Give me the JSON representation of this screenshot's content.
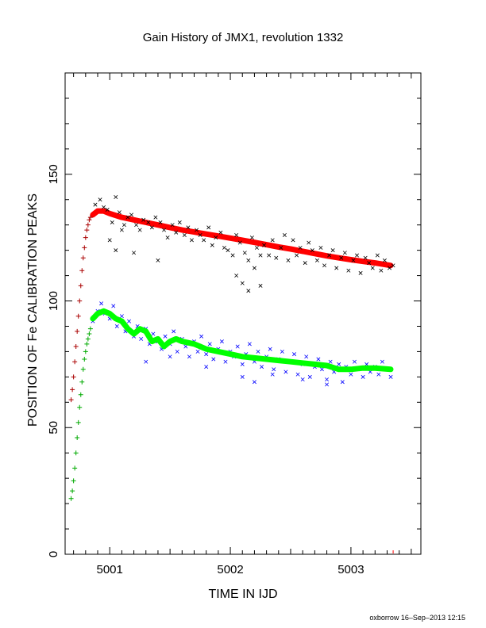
{
  "chart_data": {
    "type": "scatter",
    "title": "Gain History of JMX1, revolution 1332",
    "xlabel": "TIME IN IJD",
    "ylabel": "POSITION OF Fe CALIBRATION PEAKS",
    "footer": "oxborrow 16–Sep–2013 12:15",
    "xlim": [
      5000.63,
      5003.58
    ],
    "ylim": [
      0,
      190
    ],
    "x_ticks": [
      5001,
      5002,
      5003
    ],
    "x_tick_labels": [
      "5001",
      "5002",
      "5003"
    ],
    "y_ticks": [
      0,
      50,
      100,
      150
    ],
    "y_tick_labels": [
      "0",
      "50",
      "100",
      "150"
    ],
    "grid": false,
    "series": [
      {
        "role": "upper-peak-fit",
        "color": "#ff0000",
        "marker": "thick-line",
        "x": [
          5000.86,
          5000.9,
          5000.95,
          5001.0,
          5001.1,
          5001.2,
          5001.3,
          5001.4,
          5001.5,
          5001.6,
          5001.7,
          5001.8,
          5001.9,
          5002.0,
          5002.1,
          5002.2,
          5002.3,
          5002.4,
          5002.5,
          5002.6,
          5002.7,
          5002.8,
          5002.9,
          5003.0,
          5003.1,
          5003.2,
          5003.33
        ],
        "y": [
          134,
          135.5,
          135.5,
          134.5,
          133,
          132,
          131,
          130,
          129,
          128,
          127.2,
          126.4,
          125.6,
          124.8,
          124,
          123.1,
          122.2,
          121.3,
          120.5,
          119.6,
          118.7,
          117.8,
          117,
          116.3,
          115.6,
          115,
          114
        ]
      },
      {
        "role": "upper-peak-rise",
        "color": "#aa0000",
        "marker": "plus",
        "x": [
          5000.68,
          5000.69,
          5000.7,
          5000.71,
          5000.72,
          5000.73,
          5000.74,
          5000.75,
          5000.76,
          5000.77,
          5000.78,
          5000.79,
          5000.8,
          5000.81,
          5000.82,
          5000.83,
          5000.84
        ],
        "y": [
          61,
          65,
          70,
          76,
          82,
          88,
          94,
          100,
          106,
          112,
          117,
          121,
          125,
          128,
          130,
          132,
          133
        ]
      },
      {
        "role": "upper-peak-data",
        "color": "#000000",
        "marker": "x",
        "x": [
          5000.88,
          5000.92,
          5000.95,
          5000.98,
          5001.02,
          5001.05,
          5001.08,
          5001.12,
          5001.15,
          5001.18,
          5001.22,
          5001.25,
          5001.28,
          5001.32,
          5001.35,
          5001.38,
          5001.42,
          5001.45,
          5001.48,
          5001.52,
          5001.55,
          5001.58,
          5001.62,
          5001.65,
          5001.68,
          5001.72,
          5001.75,
          5001.78,
          5001.82,
          5001.85,
          5001.88,
          5001.92,
          5001.95,
          5001.98,
          5002.02,
          5002.05,
          5002.08,
          5002.12,
          5002.15,
          5002.18,
          5002.22,
          5002.25,
          5002.28,
          5002.32,
          5002.35,
          5002.38,
          5002.42,
          5002.45,
          5002.48,
          5002.52,
          5002.55,
          5002.58,
          5002.62,
          5002.65,
          5002.68,
          5002.72,
          5002.75,
          5002.78,
          5002.82,
          5002.85,
          5002.88,
          5002.92,
          5002.95,
          5002.98,
          5003.02,
          5003.05,
          5003.08,
          5003.12,
          5003.15,
          5003.18,
          5003.22,
          5003.25,
          5003.28,
          5003.32,
          5003.35,
          5001.0,
          5001.05,
          5001.1,
          5001.2,
          5001.4,
          5002.05,
          5002.1,
          5002.15,
          5002.2,
          5002.25
        ],
        "y": [
          138,
          140,
          137,
          136,
          131,
          141,
          135,
          130,
          133,
          134,
          130,
          128,
          132,
          131,
          129,
          133,
          131,
          128,
          125,
          130,
          127,
          131,
          126,
          129,
          124,
          128,
          126,
          124,
          129,
          122,
          125,
          127,
          121,
          120,
          118,
          126,
          123,
          119,
          116,
          125,
          121,
          118,
          122,
          118,
          124,
          117,
          121,
          126,
          116,
          124,
          118,
          121,
          115,
          123,
          120,
          116,
          121,
          114,
          118,
          120,
          113,
          117,
          119,
          112,
          116,
          118,
          111,
          117,
          115,
          113,
          118,
          112,
          116,
          113,
          114,
          124,
          120,
          128,
          119,
          116,
          110,
          107,
          104,
          113,
          106
        ]
      },
      {
        "role": "lower-peak-data",
        "color": "#0000ff",
        "marker": "x",
        "x": [
          5000.86,
          5000.9,
          5000.93,
          5000.96,
          5001.0,
          5001.03,
          5001.06,
          5001.1,
          5001.13,
          5001.16,
          5001.2,
          5001.23,
          5001.26,
          5001.3,
          5001.33,
          5001.36,
          5001.4,
          5001.43,
          5001.46,
          5001.5,
          5001.53,
          5001.56,
          5001.6,
          5001.63,
          5001.66,
          5001.7,
          5001.73,
          5001.76,
          5001.8,
          5001.83,
          5001.86,
          5001.9,
          5001.93,
          5001.96,
          5002.0,
          5002.03,
          5002.06,
          5002.1,
          5002.13,
          5002.16,
          5002.2,
          5002.23,
          5002.26,
          5002.3,
          5002.33,
          5002.36,
          5002.4,
          5002.43,
          5002.46,
          5002.5,
          5002.53,
          5002.56,
          5002.6,
          5002.63,
          5002.66,
          5002.7,
          5002.73,
          5002.76,
          5002.8,
          5002.83,
          5002.86,
          5002.9,
          5002.93,
          5002.96,
          5003.0,
          5003.03,
          5003.06,
          5003.1,
          5003.13,
          5003.16,
          5003.2,
          5003.23,
          5003.26,
          5003.3,
          5003.33,
          5001.3,
          5001.5,
          5001.8,
          5002.1,
          5002.2,
          5002.35,
          5002.6,
          5002.8
        ],
        "y": [
          92,
          96,
          99,
          95,
          93,
          98,
          90,
          94,
          88,
          92,
          86,
          90,
          85,
          89,
          83,
          87,
          84,
          81,
          86,
          83,
          88,
          80,
          85,
          82,
          78,
          84,
          80,
          86,
          79,
          83,
          77,
          81,
          84,
          76,
          80,
          78,
          82,
          75,
          79,
          83,
          76,
          80,
          74,
          78,
          81,
          73,
          77,
          80,
          72,
          76,
          79,
          71,
          75,
          78,
          70,
          74,
          77,
          73,
          69,
          76,
          72,
          75,
          68,
          74,
          71,
          76,
          73,
          70,
          75,
          72,
          74,
          71,
          76,
          73,
          70,
          76,
          78,
          74,
          70,
          68,
          71,
          69,
          67
        ]
      },
      {
        "role": "lower-peak-fit",
        "color": "#00ff00",
        "marker": "thick-line",
        "x": [
          5000.86,
          5000.9,
          5000.95,
          5001.0,
          5001.05,
          5001.1,
          5001.15,
          5001.2,
          5001.25,
          5001.3,
          5001.35,
          5001.4,
          5001.45,
          5001.5,
          5001.55,
          5001.6,
          5001.7,
          5001.8,
          5001.9,
          5002.0,
          5002.1,
          5002.2,
          5002.3,
          5002.4,
          5002.5,
          5002.6,
          5002.7,
          5002.8,
          5002.9,
          5003.0,
          5003.1,
          5003.2,
          5003.33
        ],
        "y": [
          93,
          95,
          96,
          95,
          93,
          92,
          89,
          87,
          89,
          88,
          84,
          85,
          82,
          84,
          85,
          84,
          83,
          81,
          80,
          79,
          78,
          77.5,
          77,
          76.5,
          76,
          75.5,
          75,
          74.5,
          73,
          73,
          73.5,
          73.5,
          73
        ]
      },
      {
        "role": "lower-peak-rise",
        "color": "#00aa00",
        "marker": "plus",
        "x": [
          5000.68,
          5000.69,
          5000.7,
          5000.71,
          5000.72,
          5000.73,
          5000.74,
          5000.75,
          5000.76,
          5000.77,
          5000.78,
          5000.79,
          5000.8,
          5000.81,
          5000.82,
          5000.83,
          5000.84
        ],
        "y": [
          22,
          25,
          29,
          34,
          40,
          46,
          52,
          58,
          63,
          68,
          73,
          77,
          80,
          83,
          85,
          87,
          89
        ]
      }
    ]
  }
}
